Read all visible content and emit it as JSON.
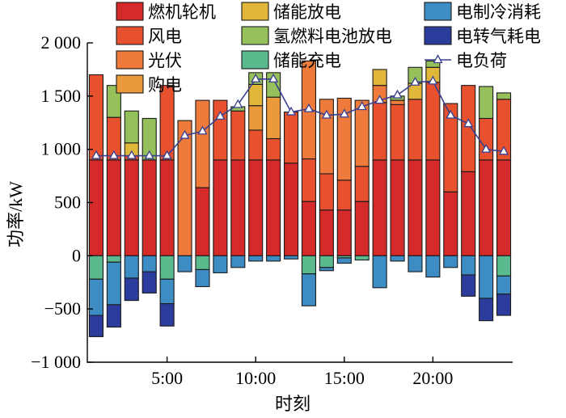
{
  "chart_data": {
    "type": "bar",
    "stacked": true,
    "title": "",
    "xlabel": "时刻",
    "ylabel": "功率/kW",
    "ylim": [
      -1000,
      2000
    ],
    "yticks": [
      -1000,
      -500,
      0,
      500,
      1000,
      1500,
      2000
    ],
    "ytick_labels": [
      "−1 000",
      "−500",
      "0",
      "500",
      "1 000",
      "1 500",
      "2 000"
    ],
    "xticks": [
      5,
      10,
      15,
      20
    ],
    "xtick_labels": [
      "5:00",
      "10:00",
      "15:00",
      "20:00"
    ],
    "x": [
      1,
      2,
      3,
      4,
      5,
      6,
      7,
      8,
      9,
      10,
      11,
      12,
      13,
      14,
      15,
      16,
      17,
      18,
      19,
      20,
      21,
      22,
      23,
      24
    ],
    "grid": false,
    "legend_position": "top",
    "series": [
      {
        "name": "燃机轮机",
        "color": "#d42a2a",
        "values": [
          900,
          900,
          900,
          900,
          900,
          0,
          640,
          900,
          900,
          900,
          900,
          870,
          510,
          430,
          430,
          510,
          900,
          900,
          900,
          900,
          600,
          790,
          900,
          900
        ]
      },
      {
        "name": "风电",
        "color": "#e8512e",
        "values": [
          800,
          400,
          40,
          0,
          700,
          0,
          0,
          560,
          460,
          280,
          200,
          480,
          400,
          340,
          280,
          330,
          540,
          520,
          570,
          730,
          830,
          810,
          390,
          570
        ]
      },
      {
        "name": "光伏",
        "color": "#ee7a3c",
        "values": [
          0,
          0,
          0,
          0,
          0,
          1270,
          820,
          0,
          0,
          0,
          0,
          0,
          920,
          700,
          770,
          620,
          160,
          40,
          0,
          0,
          0,
          0,
          0,
          0
        ]
      },
      {
        "name": "购电",
        "color": "#eb9a3b",
        "values": [
          0,
          0,
          0,
          0,
          0,
          0,
          0,
          0,
          0,
          230,
          390,
          0,
          0,
          0,
          0,
          0,
          0,
          0,
          0,
          0,
          0,
          0,
          0,
          0
        ]
      },
      {
        "name": "储能放电",
        "color": "#e0b73a",
        "values": [
          0,
          0,
          120,
          0,
          0,
          0,
          0,
          0,
          0,
          200,
          0,
          0,
          0,
          0,
          0,
          0,
          150,
          0,
          150,
          140,
          0,
          0,
          0,
          0
        ]
      },
      {
        "name": "氢燃料电池放电",
        "color": "#96c05b",
        "values": [
          0,
          300,
          300,
          390,
          0,
          0,
          0,
          0,
          40,
          110,
          230,
          0,
          0,
          0,
          0,
          0,
          0,
          40,
          150,
          60,
          0,
          0,
          300,
          60
        ]
      },
      {
        "name": "储能充电",
        "color": "#5ab98d",
        "values": [
          -220,
          -60,
          0,
          0,
          -220,
          0,
          -130,
          0,
          0,
          0,
          0,
          0,
          -170,
          -110,
          -20,
          -40,
          0,
          0,
          0,
          0,
          0,
          0,
          0,
          -190
        ]
      },
      {
        "name": "电制冷消耗",
        "color": "#3e8cc4",
        "values": [
          -340,
          -400,
          -210,
          -150,
          -230,
          -150,
          -160,
          -160,
          -110,
          -50,
          -50,
          -30,
          -300,
          -30,
          -50,
          0,
          -300,
          -50,
          -150,
          -200,
          -110,
          -180,
          -400,
          -170
        ]
      },
      {
        "name": "电转气耗电",
        "color": "#2c3c9c",
        "values": [
          -200,
          -210,
          -210,
          -200,
          -210,
          0,
          0,
          0,
          0,
          0,
          0,
          0,
          0,
          0,
          0,
          0,
          0,
          0,
          0,
          0,
          0,
          -200,
          -210,
          -200
        ]
      },
      {
        "name": "电负荷",
        "type": "line",
        "color": "#3a3f8f",
        "values": [
          940,
          940,
          940,
          940,
          940,
          1130,
          1170,
          1310,
          1420,
          1660,
          1660,
          1350,
          1380,
          1320,
          1330,
          1400,
          1460,
          1510,
          1630,
          1640,
          1320,
          1240,
          1000,
          980
        ]
      }
    ]
  }
}
